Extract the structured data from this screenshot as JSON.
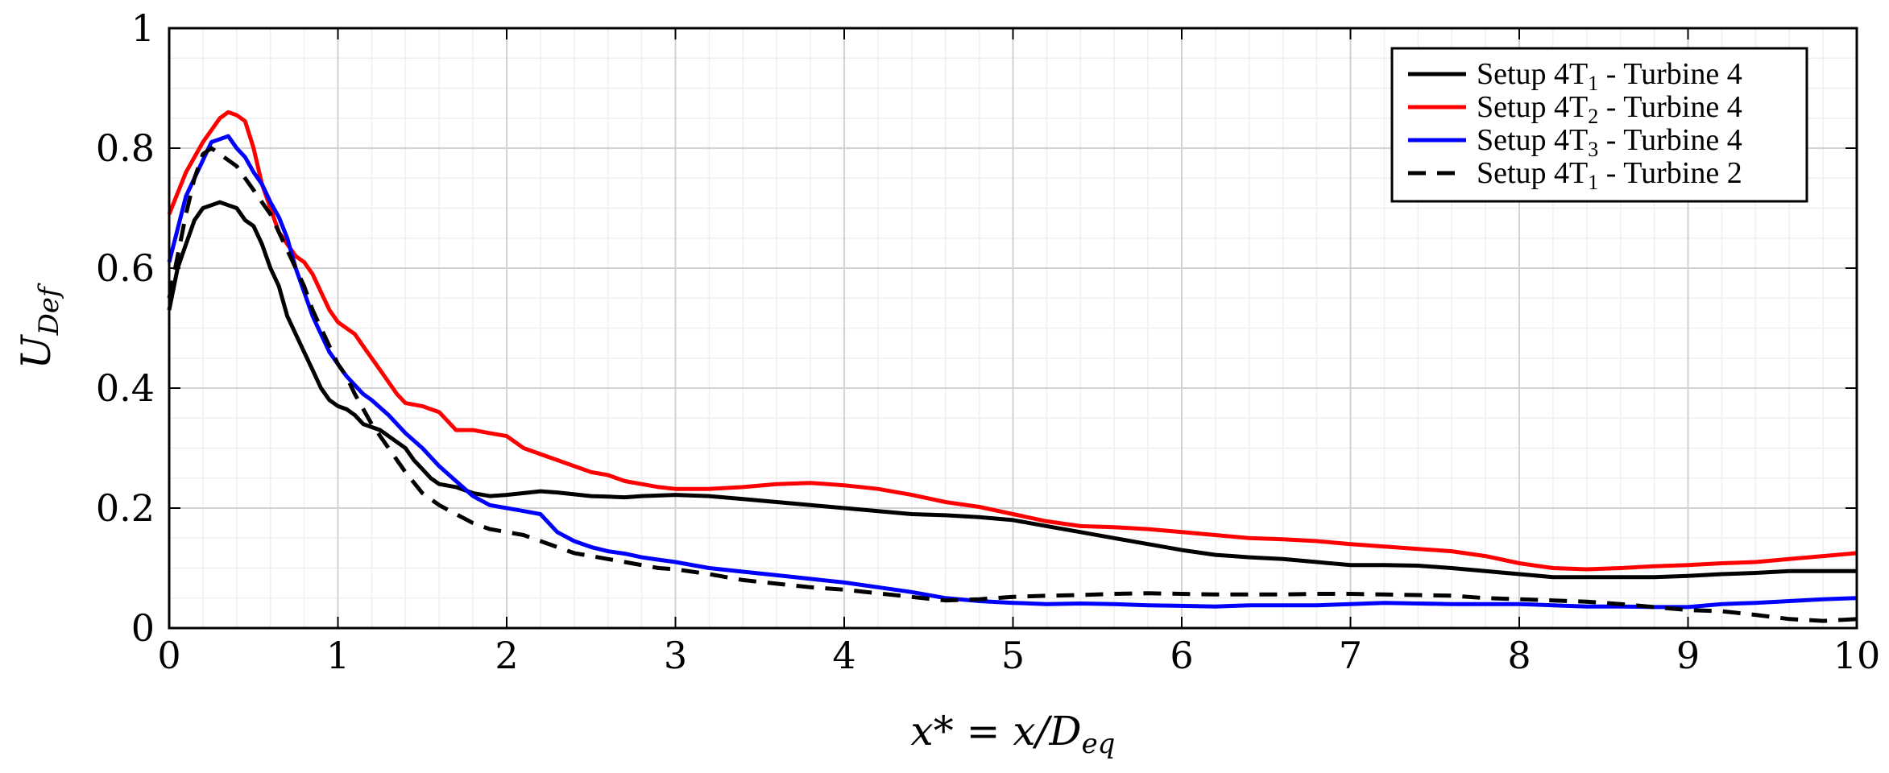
{
  "chart_data": {
    "type": "line",
    "title": "",
    "xlabel": "x* = x/D",
    "xlabel_sub": "eq",
    "ylabel": "U",
    "ylabel_sub": "Def",
    "xlim": [
      0,
      10
    ],
    "ylim": [
      0,
      1
    ],
    "xticks": [
      0,
      1,
      2,
      3,
      4,
      5,
      6,
      7,
      8,
      9,
      10
    ],
    "xtick_labels": [
      "0",
      "1",
      "2",
      "3",
      "4",
      "5",
      "6",
      "7",
      "8",
      "9",
      "10"
    ],
    "yticks": [
      0,
      0.2,
      0.4,
      0.6,
      0.8,
      1
    ],
    "ytick_labels": [
      "0",
      "0.2",
      "0.4",
      "0.6",
      "0.8",
      "1"
    ],
    "grid": true,
    "minor_grid": true,
    "legend_position": "top-right",
    "series": [
      {
        "name": "Setup 4T",
        "name_sub": "1",
        "name_tail": " - Turbine 4",
        "color": "#000000",
        "dash": "solid",
        "x": [
          0,
          0.05,
          0.1,
          0.15,
          0.2,
          0.25,
          0.3,
          0.35,
          0.4,
          0.45,
          0.5,
          0.55,
          0.6,
          0.65,
          0.7,
          0.75,
          0.8,
          0.85,
          0.9,
          0.95,
          1.0,
          1.05,
          1.1,
          1.15,
          1.2,
          1.25,
          1.3,
          1.35,
          1.4,
          1.45,
          1.5,
          1.55,
          1.6,
          1.7,
          1.8,
          1.9,
          2.0,
          2.1,
          2.2,
          2.3,
          2.4,
          2.5,
          2.6,
          2.7,
          2.8,
          2.9,
          3.0,
          3.2,
          3.4,
          3.6,
          3.8,
          4.0,
          4.2,
          4.4,
          4.6,
          4.8,
          5.0,
          5.2,
          5.4,
          5.6,
          5.8,
          6.0,
          6.2,
          6.4,
          6.6,
          6.8,
          7.0,
          7.2,
          7.4,
          7.6,
          7.8,
          8.0,
          8.2,
          8.4,
          8.6,
          8.8,
          9.0,
          9.2,
          9.4,
          9.6,
          9.8,
          10.0
        ],
        "values": [
          0.53,
          0.6,
          0.64,
          0.68,
          0.7,
          0.705,
          0.71,
          0.705,
          0.7,
          0.68,
          0.67,
          0.64,
          0.6,
          0.57,
          0.52,
          0.49,
          0.46,
          0.43,
          0.4,
          0.38,
          0.37,
          0.365,
          0.355,
          0.34,
          0.335,
          0.33,
          0.32,
          0.31,
          0.3,
          0.28,
          0.265,
          0.25,
          0.24,
          0.235,
          0.225,
          0.22,
          0.222,
          0.225,
          0.228,
          0.226,
          0.223,
          0.22,
          0.219,
          0.218,
          0.22,
          0.221,
          0.222,
          0.22,
          0.215,
          0.21,
          0.205,
          0.2,
          0.195,
          0.19,
          0.188,
          0.185,
          0.18,
          0.17,
          0.16,
          0.15,
          0.14,
          0.13,
          0.122,
          0.118,
          0.115,
          0.11,
          0.105,
          0.105,
          0.104,
          0.1,
          0.095,
          0.09,
          0.085,
          0.085,
          0.085,
          0.085,
          0.087,
          0.09,
          0.092,
          0.095,
          0.095,
          0.095
        ]
      },
      {
        "name": "Setup 4T",
        "name_sub": "2",
        "name_tail": " - Turbine 4",
        "color": "#ff0000",
        "dash": "solid",
        "x": [
          0,
          0.1,
          0.2,
          0.3,
          0.35,
          0.4,
          0.45,
          0.5,
          0.55,
          0.6,
          0.65,
          0.7,
          0.75,
          0.8,
          0.85,
          0.9,
          0.95,
          1.0,
          1.05,
          1.1,
          1.15,
          1.2,
          1.25,
          1.3,
          1.35,
          1.4,
          1.5,
          1.55,
          1.6,
          1.7,
          1.8,
          1.9,
          2.0,
          2.1,
          2.2,
          2.3,
          2.4,
          2.5,
          2.6,
          2.7,
          2.8,
          2.9,
          3.0,
          3.2,
          3.4,
          3.6,
          3.8,
          4.0,
          4.2,
          4.4,
          4.6,
          4.8,
          5.0,
          5.2,
          5.4,
          5.6,
          5.8,
          6.0,
          6.2,
          6.4,
          6.6,
          6.8,
          7.0,
          7.2,
          7.4,
          7.6,
          7.8,
          8.0,
          8.2,
          8.4,
          8.6,
          8.8,
          9.0,
          9.2,
          9.4,
          9.6,
          9.8,
          10.0
        ],
        "values": [
          0.69,
          0.76,
          0.81,
          0.85,
          0.86,
          0.855,
          0.845,
          0.8,
          0.74,
          0.7,
          0.66,
          0.64,
          0.62,
          0.61,
          0.59,
          0.56,
          0.53,
          0.51,
          0.5,
          0.49,
          0.47,
          0.45,
          0.43,
          0.41,
          0.39,
          0.375,
          0.37,
          0.365,
          0.36,
          0.33,
          0.33,
          0.325,
          0.32,
          0.3,
          0.29,
          0.28,
          0.27,
          0.26,
          0.255,
          0.245,
          0.24,
          0.235,
          0.232,
          0.232,
          0.235,
          0.24,
          0.242,
          0.238,
          0.232,
          0.222,
          0.21,
          0.202,
          0.19,
          0.178,
          0.17,
          0.168,
          0.165,
          0.16,
          0.155,
          0.15,
          0.148,
          0.145,
          0.14,
          0.136,
          0.132,
          0.128,
          0.12,
          0.108,
          0.1,
          0.098,
          0.1,
          0.103,
          0.105,
          0.108,
          0.11,
          0.115,
          0.12,
          0.125
        ]
      },
      {
        "name": "Setup 4T",
        "name_sub": "3",
        "name_tail": " - Turbine 4",
        "color": "#0000ff",
        "dash": "solid",
        "x": [
          0,
          0.1,
          0.2,
          0.25,
          0.3,
          0.35,
          0.4,
          0.45,
          0.5,
          0.55,
          0.6,
          0.65,
          0.7,
          0.75,
          0.8,
          0.85,
          0.9,
          0.95,
          1.0,
          1.05,
          1.1,
          1.15,
          1.2,
          1.3,
          1.4,
          1.5,
          1.6,
          1.7,
          1.8,
          1.9,
          2.0,
          2.1,
          2.2,
          2.3,
          2.4,
          2.5,
          2.6,
          2.7,
          2.8,
          2.9,
          3.0,
          3.2,
          3.4,
          3.6,
          3.8,
          4.0,
          4.2,
          4.4,
          4.6,
          4.8,
          5.0,
          5.2,
          5.4,
          5.6,
          5.8,
          6.0,
          6.2,
          6.4,
          6.6,
          6.8,
          7.0,
          7.2,
          7.4,
          7.6,
          7.8,
          8.0,
          8.2,
          8.4,
          8.6,
          8.8,
          9.0,
          9.2,
          9.4,
          9.6,
          9.8,
          10.0
        ],
        "values": [
          0.61,
          0.72,
          0.78,
          0.81,
          0.815,
          0.82,
          0.8,
          0.785,
          0.76,
          0.74,
          0.71,
          0.685,
          0.65,
          0.6,
          0.56,
          0.52,
          0.49,
          0.46,
          0.44,
          0.42,
          0.405,
          0.39,
          0.38,
          0.355,
          0.325,
          0.3,
          0.27,
          0.245,
          0.22,
          0.205,
          0.2,
          0.195,
          0.19,
          0.16,
          0.145,
          0.135,
          0.128,
          0.124,
          0.118,
          0.114,
          0.11,
          0.1,
          0.094,
          0.088,
          0.082,
          0.076,
          0.068,
          0.06,
          0.05,
          0.045,
          0.042,
          0.04,
          0.041,
          0.04,
          0.038,
          0.037,
          0.036,
          0.038,
          0.038,
          0.038,
          0.04,
          0.042,
          0.041,
          0.04,
          0.04,
          0.04,
          0.038,
          0.036,
          0.036,
          0.035,
          0.035,
          0.04,
          0.042,
          0.045,
          0.048,
          0.05
        ]
      },
      {
        "name": "Setup 4T",
        "name_sub": "1",
        "name_tail": " - Turbine 2",
        "color": "#000000",
        "dash": "dashed",
        "x": [
          0,
          0.05,
          0.1,
          0.15,
          0.2,
          0.25,
          0.3,
          0.35,
          0.4,
          0.45,
          0.5,
          0.55,
          0.6,
          0.65,
          0.7,
          0.75,
          0.8,
          0.85,
          0.9,
          0.95,
          1.0,
          1.05,
          1.1,
          1.2,
          1.3,
          1.4,
          1.5,
          1.6,
          1.7,
          1.8,
          1.9,
          2.0,
          2.1,
          2.2,
          2.3,
          2.4,
          2.5,
          2.6,
          2.7,
          2.8,
          2.9,
          3.0,
          3.2,
          3.4,
          3.6,
          3.8,
          4.0,
          4.2,
          4.4,
          4.6,
          4.8,
          5.0,
          5.2,
          5.4,
          5.6,
          5.8,
          6.0,
          6.2,
          6.4,
          6.6,
          6.8,
          7.0,
          7.2,
          7.4,
          7.6,
          7.8,
          8.0,
          8.2,
          8.4,
          8.6,
          8.8,
          9.0,
          9.2,
          9.4,
          9.6,
          9.8,
          10.0
        ],
        "values": [
          0.55,
          0.62,
          0.69,
          0.75,
          0.79,
          0.8,
          0.79,
          0.78,
          0.77,
          0.75,
          0.73,
          0.71,
          0.69,
          0.66,
          0.63,
          0.6,
          0.57,
          0.53,
          0.5,
          0.47,
          0.44,
          0.42,
          0.39,
          0.34,
          0.3,
          0.26,
          0.225,
          0.205,
          0.19,
          0.175,
          0.165,
          0.16,
          0.155,
          0.145,
          0.135,
          0.125,
          0.12,
          0.115,
          0.11,
          0.105,
          0.1,
          0.098,
          0.09,
          0.08,
          0.074,
          0.068,
          0.064,
          0.058,
          0.052,
          0.046,
          0.048,
          0.052,
          0.054,
          0.055,
          0.057,
          0.058,
          0.057,
          0.056,
          0.056,
          0.056,
          0.057,
          0.057,
          0.056,
          0.055,
          0.054,
          0.05,
          0.048,
          0.046,
          0.044,
          0.04,
          0.035,
          0.03,
          0.028,
          0.022,
          0.015,
          0.012,
          0.015
        ]
      }
    ]
  }
}
